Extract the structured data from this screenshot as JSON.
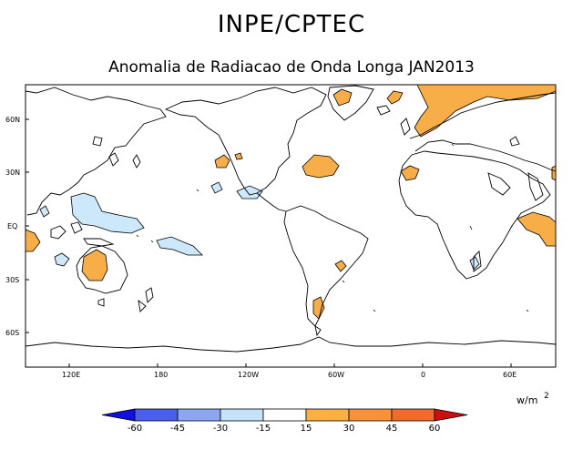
{
  "header": {
    "title": "INPE/CPTEC",
    "subtitle": "Anomalia de Radiacao de Onda Longa JAN2013"
  },
  "map": {
    "lat_labels": [
      "60N",
      "30N",
      "EQ",
      "30S",
      "60S"
    ],
    "lon_labels": [
      "120E",
      "180",
      "120W",
      "60W",
      "0",
      "60E"
    ]
  },
  "legend": {
    "unit": "w/m",
    "unit_power": "2",
    "tick_labels": [
      "-60",
      "-45",
      "-30",
      "-15",
      "15",
      "30",
      "45",
      "60"
    ],
    "colors": [
      "#1010e0",
      "#4a5ff0",
      "#8ca6f2",
      "#c4e2f8",
      "#ffffff",
      "#fbb040",
      "#f9903a",
      "#f56a2c",
      "#cc1010"
    ]
  },
  "colors": {
    "positive_anomaly": "#f8ae48",
    "negative_anomaly": "#cde8fa"
  }
}
